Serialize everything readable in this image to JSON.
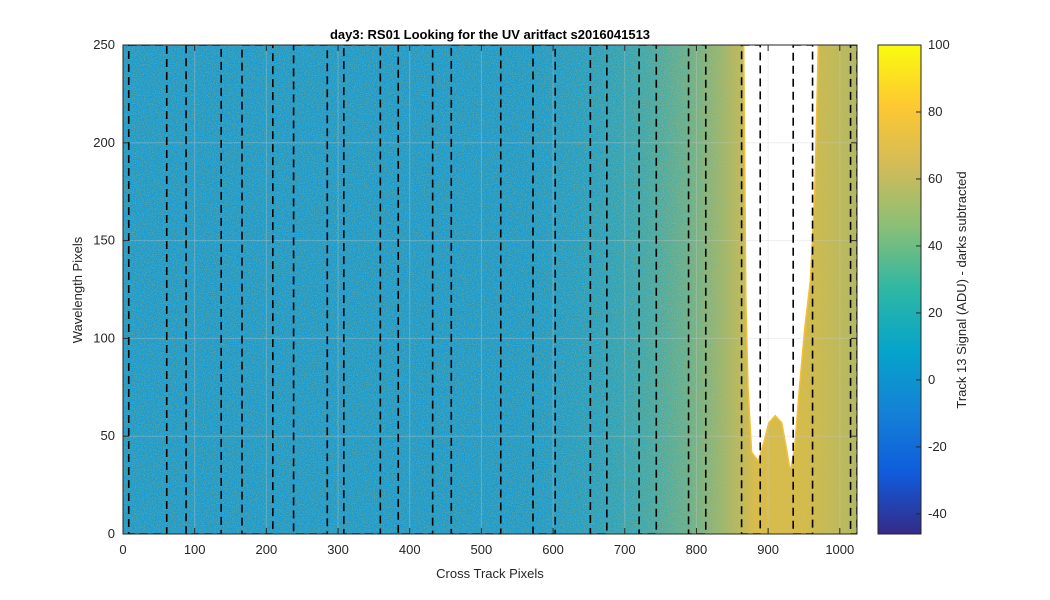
{
  "chart_data": {
    "type": "heatmap",
    "title": "day3: RS01  Looking for the UV aritfact  s2016041513",
    "xlabel": "Cross Track Pixels",
    "ylabel": "Wavelength Pixels",
    "xlim": [
      0,
      1024
    ],
    "ylim": [
      0,
      250
    ],
    "x_ticks": [
      0,
      100,
      200,
      300,
      400,
      500,
      600,
      700,
      800,
      900,
      1000
    ],
    "y_ticks": [
      0,
      50,
      100,
      150,
      200,
      250
    ],
    "grid": true,
    "colorbar": {
      "label": "Track 13 Signal (ADU) - darks subtracted",
      "range": [
        -46,
        100
      ],
      "ticks": [
        -40,
        -20,
        0,
        20,
        40,
        60,
        80,
        100
      ],
      "colormap": "parula",
      "colors": [
        "#352a87",
        "#0f5cdd",
        "#1481d6",
        "#06a4ca",
        "#2eb7a4",
        "#87bf77",
        "#d1bb59",
        "#fec832",
        "#f9fb0e"
      ]
    },
    "background_signal": 0,
    "saturated_region": {
      "left_outer_x": [
        867,
        250
      ],
      "bottom_profile": [
        {
          "x": 867,
          "y": 250
        },
        {
          "x": 870,
          "y": 120
        },
        {
          "x": 873,
          "y": 75
        },
        {
          "x": 878,
          "y": 42
        },
        {
          "x": 886,
          "y": 38
        },
        {
          "x": 893,
          "y": 47
        },
        {
          "x": 900,
          "y": 57
        },
        {
          "x": 910,
          "y": 61
        },
        {
          "x": 920,
          "y": 57
        },
        {
          "x": 926,
          "y": 45
        },
        {
          "x": 931,
          "y": 34
        },
        {
          "x": 936,
          "y": 44
        },
        {
          "x": 942,
          "y": 72
        },
        {
          "x": 950,
          "y": 105
        },
        {
          "x": 958,
          "y": 130
        },
        {
          "x": 964,
          "y": 175
        },
        {
          "x": 969,
          "y": 250
        }
      ]
    },
    "dashed_boxes": [
      {
        "x0": 8,
        "x1": 61
      },
      {
        "x0": 88,
        "x1": 137
      },
      {
        "x0": 166,
        "x1": 209
      },
      {
        "x0": 238,
        "x1": 285
      },
      {
        "x0": 308,
        "x1": 359
      },
      {
        "x0": 384,
        "x1": 432
      },
      {
        "x0": 458,
        "x1": 527
      },
      {
        "x0": 572,
        "x1": 603
      },
      {
        "x0": 652,
        "x1": 675
      },
      {
        "x0": 720,
        "x1": 744
      },
      {
        "x0": 789,
        "x1": 813
      },
      {
        "x0": 863,
        "x1": 889
      },
      {
        "x0": 935,
        "x1": 962
      },
      {
        "x0": 1015,
        "x1": 1024
      }
    ]
  }
}
